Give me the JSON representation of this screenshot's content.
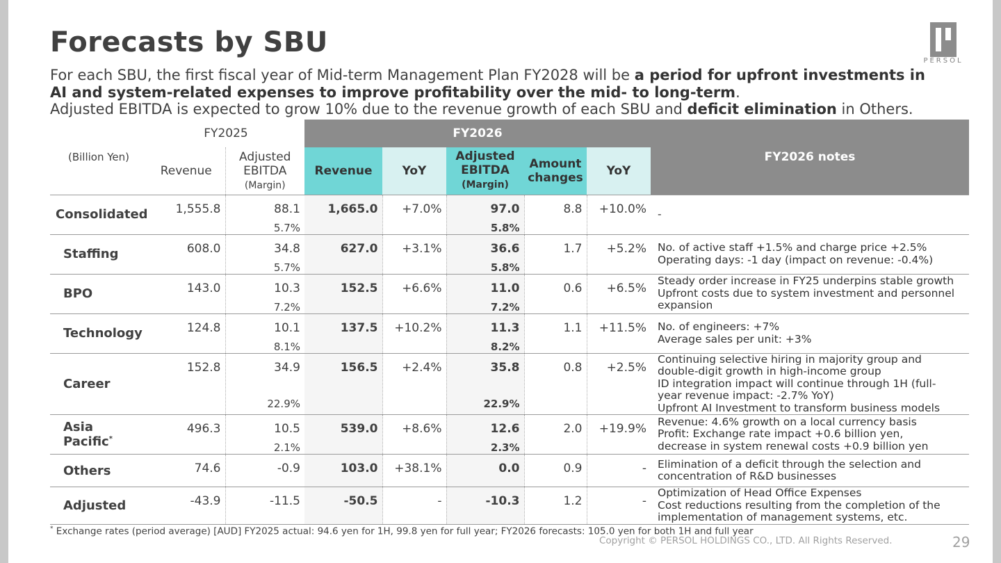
{
  "title": "Forecasts by SBU",
  "logo_text": "PERSOL",
  "subtitle": {
    "l1_a": "For each SBU, the first fiscal year of Mid-term Management Plan FY2028 will be ",
    "l1_b": "a period for upfront investments in",
    "l2_b": "AI and system-related expenses to improve profitability over the mid- to long-term",
    "l2_c": ".",
    "l3_a": "Adjusted EBITDA is expected to grow 10% due to the revenue growth of each SBU and ",
    "l3_b": "deficit elimination",
    "l3_c": " in Others."
  },
  "table": {
    "unit": "(Billion Yen)",
    "fy2025": "FY2025",
    "fy2026": "FY2026",
    "notes_header": "FY2026 notes",
    "col_revenue": "Revenue",
    "col_adj_1": "Adjusted",
    "col_adj_2": "EBITDA",
    "col_margin": "(Margin)",
    "col_yoy": "YoY",
    "col_amount_1": "Amount",
    "col_amount_2": "changes",
    "rows": [
      {
        "seg": "Consolidated",
        "rev25": "1,555.8",
        "ebitda25": "88.1",
        "m25": "5.7%",
        "rev26": "1,665.0",
        "yoy_rev": "+7.0%",
        "ebitda26": "97.0",
        "m26": "5.8%",
        "amt": "8.8",
        "yoy_eb": "+10.0%",
        "notes": [
          "-"
        ]
      },
      {
        "seg": "Staffing",
        "rev25": "608.0",
        "ebitda25": "34.8",
        "m25": "5.7%",
        "rev26": "627.0",
        "yoy_rev": "+3.1%",
        "ebitda26": "36.6",
        "m26": "5.8%",
        "amt": "1.7",
        "yoy_eb": "+5.2%",
        "notes": [
          "No. of active staff +1.5% and charge price +2.5%",
          "Operating days: -1 day (impact on revenue: -0.4%)"
        ]
      },
      {
        "seg": "BPO",
        "rev25": "143.0",
        "ebitda25": "10.3",
        "m25": "7.2%",
        "rev26": "152.5",
        "yoy_rev": "+6.6%",
        "ebitda26": "11.0",
        "m26": "7.2%",
        "amt": "0.6",
        "yoy_eb": "+6.5%",
        "notes": [
          "Steady order increase in FY25 underpins stable growth",
          "Upfront costs due to system investment and personnel",
          "expansion"
        ]
      },
      {
        "seg": "Technology",
        "rev25": "124.8",
        "ebitda25": "10.1",
        "m25": "8.1%",
        "rev26": "137.5",
        "yoy_rev": "+10.2%",
        "ebitda26": "11.3",
        "m26": "8.2%",
        "amt": "1.1",
        "yoy_eb": "+11.5%",
        "notes": [
          "No. of engineers: +7%",
          "Average sales per unit: +3%"
        ]
      },
      {
        "seg": "Career",
        "rev25": "152.8",
        "ebitda25": "34.9",
        "m25": "22.9%",
        "rev26": "156.5",
        "yoy_rev": "+2.4%",
        "ebitda26": "35.8",
        "m26": "22.9%",
        "amt": "0.8",
        "yoy_eb": "+2.5%",
        "notes": [
          "Continuing selective hiring in majority group and",
          "double-digit growth in high-income group",
          "ID integration impact will continue through 1H (full-",
          "year revenue impact: -2.7% YoY)",
          "Upfront AI Investment to transform business models"
        ]
      },
      {
        "seg": "Asia",
        "seg2": "Pacific",
        "seg_sup": "*",
        "rev25": "496.3",
        "ebitda25": "10.5",
        "m25": "2.1%",
        "rev26": "539.0",
        "yoy_rev": "+8.6%",
        "ebitda26": "12.6",
        "m26": "2.3%",
        "amt": "2.0",
        "yoy_eb": "+19.9%",
        "notes": [
          "Revenue: 4.6% growth on a local currency basis",
          "Profit: Exchange rate impact +0.6 billion yen,",
          "decrease in system renewal costs +0.9 billion yen"
        ]
      },
      {
        "seg": "Others",
        "rev25": "74.6",
        "ebitda25": "-0.9",
        "m25": "",
        "rev26": "103.0",
        "yoy_rev": "+38.1%",
        "ebitda26": "0.0",
        "m26": "",
        "amt": "0.9",
        "yoy_eb": "-",
        "notes": [
          "Elimination of a deficit through the selection and",
          "concentration of R&D businesses"
        ]
      },
      {
        "seg": "Adjusted",
        "rev25": "-43.9",
        "ebitda25": "-11.5",
        "m25": "",
        "rev26": "-50.5",
        "yoy_rev": "-",
        "ebitda26": "-10.3",
        "m26": "",
        "amt": "1.2",
        "yoy_eb": "-",
        "notes": [
          "Optimization of Head Office Expenses",
          "Cost reductions resulting from the completion of the",
          "implementation of management systems, etc."
        ]
      }
    ]
  },
  "footnote_mark": "*",
  "footnote": " Exchange rates (period average) [AUD] FY2025 actual: 94.6 yen for 1H, 99.8 yen for full year; FY2026 forecasts: 105.0 yen for both 1H and full year",
  "copyright": "Copyright © PERSOL HOLDINGS CO., LTD. All Rights Reserved.",
  "page_number": "29"
}
